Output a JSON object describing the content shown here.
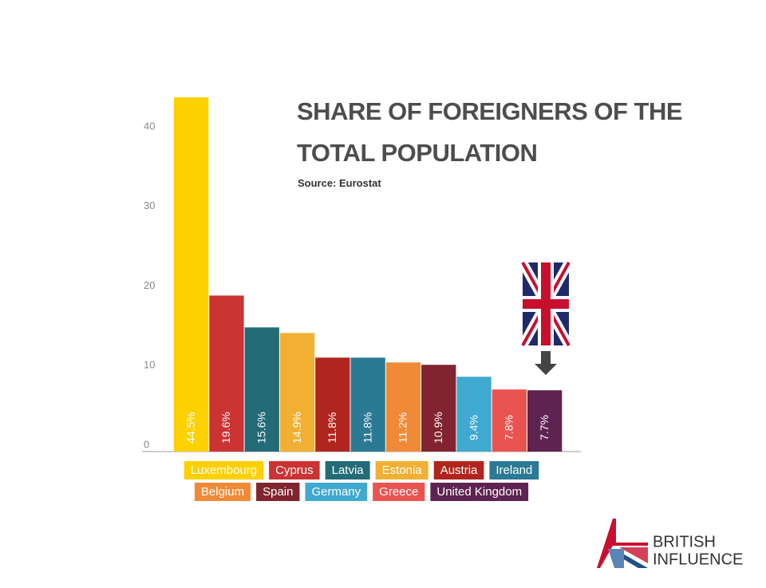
{
  "chart_data": {
    "type": "bar",
    "title": "SHARE OF FOREIGNERS OF THE TOTAL POPULATION",
    "subtitle": "Source: Eurostat",
    "categories": [
      "Luxembourg",
      "Cyprus",
      "Latvia",
      "Estonia",
      "Austria",
      "Ireland",
      "Belgium",
      "Spain",
      "Germany",
      "Greece",
      "United Kingdom"
    ],
    "values": [
      44.5,
      19.6,
      15.6,
      14.9,
      11.8,
      11.8,
      11.2,
      10.9,
      9.4,
      7.8,
      7.7
    ],
    "value_labels": [
      "44.5%",
      "19.6%",
      "15.6%",
      "14.9%",
      "11.8%",
      "11.8%",
      "11.2%",
      "10.9%",
      "9.4%",
      "7.8%",
      "7.7%"
    ],
    "colors": [
      "#fdd000",
      "#cc3333",
      "#236b76",
      "#f1b033",
      "#b0261f",
      "#2b7a94",
      "#f08a37",
      "#80242f",
      "#3fa9d0",
      "#ea5450",
      "#5e2350"
    ],
    "ylim": [
      0,
      46
    ],
    "yticks": [
      0,
      10,
      20,
      30,
      40
    ],
    "grid": false
  },
  "logo": {
    "line1": "BRITISH",
    "line2": "INFLUENCE"
  }
}
